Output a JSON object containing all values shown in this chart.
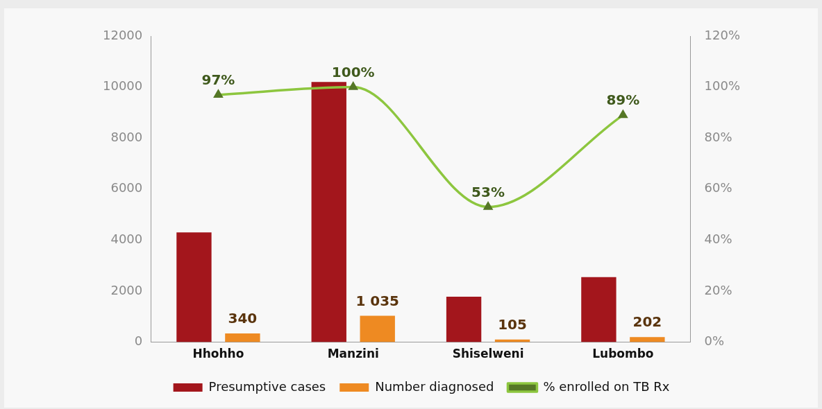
{
  "chart_data": {
    "type": "bar",
    "categories": [
      "Hhohho",
      "Manzini",
      "Shiselweni",
      "Lubombo"
    ],
    "series": [
      {
        "name": "Presumptive cases",
        "color": "#a3161c",
        "values": [
          4300,
          10200,
          1780,
          2550
        ]
      },
      {
        "name": "Number diagnosed",
        "color": "#ee8a22",
        "values": [
          340,
          1035,
          105,
          202
        ],
        "value_labels": [
          "340",
          "1 035",
          "105",
          "202"
        ]
      },
      {
        "name": "% enrolled on TB Rx",
        "type": "line",
        "axis": "y2",
        "color": "#8dc63f",
        "marker": "triangle",
        "values": [
          97,
          100,
          53,
          89
        ],
        "value_labels": [
          "97%",
          "100%",
          "53%",
          "89%"
        ]
      }
    ],
    "ylim": [
      0,
      12000
    ],
    "yticks": [
      0,
      2000,
      4000,
      6000,
      8000,
      10000,
      12000
    ],
    "y2lim": [
      0,
      120
    ],
    "y2ticks": [
      {
        "value": 0,
        "label": "0%"
      },
      {
        "value": 20,
        "label": "20%"
      },
      {
        "value": 40,
        "label": "40%"
      },
      {
        "value": 60,
        "label": "60%"
      },
      {
        "value": 80,
        "label": "80%"
      },
      {
        "value": 100,
        "label": "100%"
      },
      {
        "value": 120,
        "label": "120%"
      }
    ],
    "grid": false,
    "legend": "bottom"
  }
}
